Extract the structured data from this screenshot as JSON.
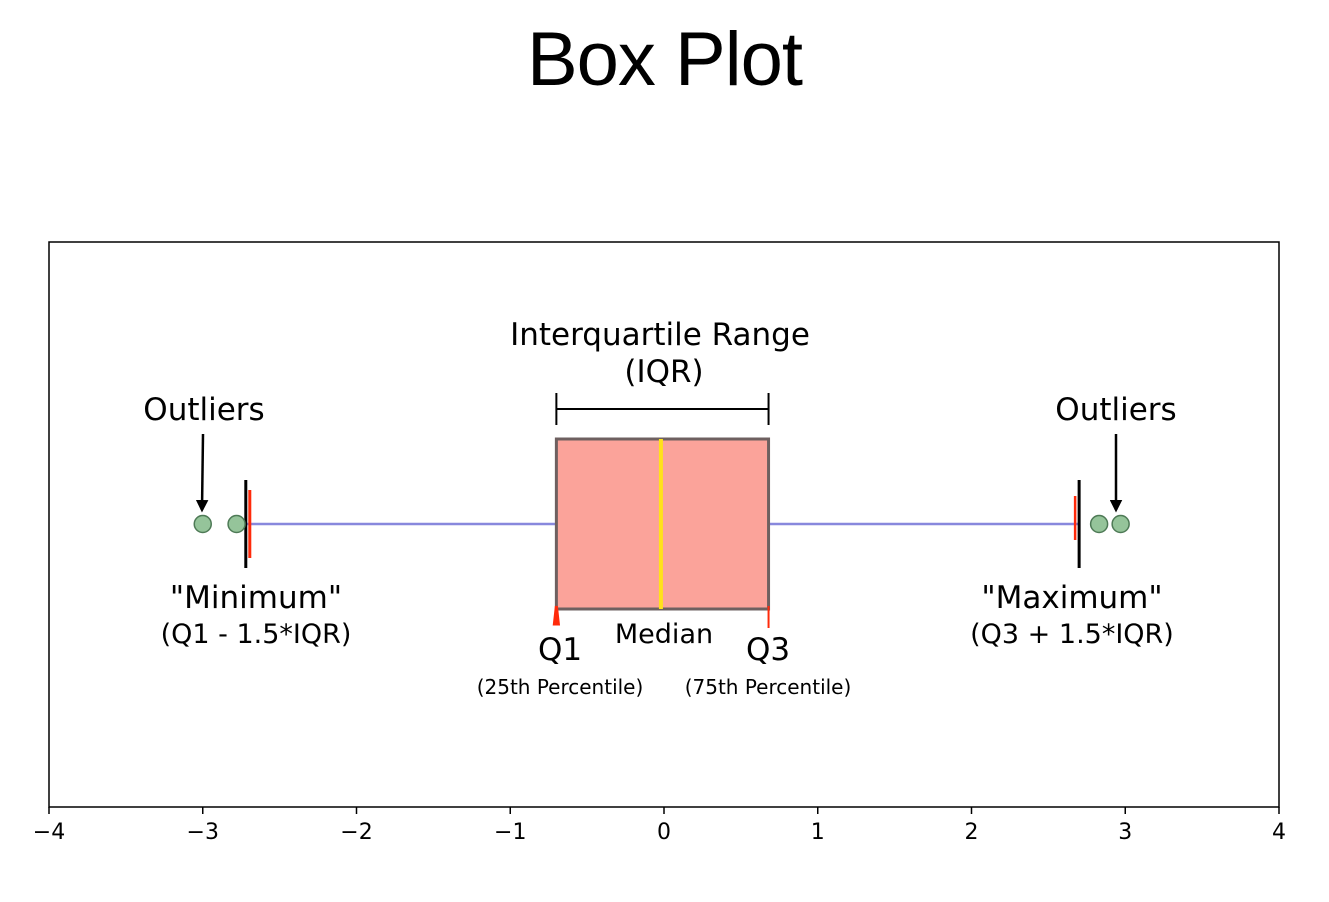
{
  "page_title": "Box Plot",
  "chart_data": {
    "type": "box",
    "xlim": [
      -4,
      4
    ],
    "xticks": [
      -4,
      -3,
      -2,
      -1,
      0,
      1,
      2,
      3,
      4
    ],
    "xtick_labels": [
      "−4",
      "−3",
      "−2",
      "−1",
      "0",
      "1",
      "2",
      "3",
      "4"
    ],
    "grid": false,
    "box": {
      "q1": -0.7,
      "median": -0.02,
      "q3": 0.68,
      "whisker_low": -2.72,
      "whisker_high": 2.7
    },
    "outliers": [
      -3.0,
      -2.78,
      2.83,
      2.97
    ],
    "colors": {
      "box_fill": "#fba39a",
      "box_edge": "#6e6060",
      "median": "#ffe11a",
      "whisker": "#8888dd",
      "cap": "#000000",
      "outlier_fill": "#95c49a",
      "outlier_edge": "#4e7a56",
      "marker": "#ff2a0a"
    },
    "annotations": {
      "iqr_title": "Interquartile Range",
      "iqr_sub": "(IQR)",
      "outliers_left": "Outliers",
      "outliers_right": "Outliers",
      "minimum_title": "\"Minimum\"",
      "minimum_sub": "(Q1 - 1.5*IQR)",
      "maximum_title": "\"Maximum\"",
      "maximum_sub": "(Q3 + 1.5*IQR)",
      "q1": "Q1",
      "q1_sub": "(25th Percentile)",
      "median": "Median",
      "q3": "Q3",
      "q3_sub": "(75th Percentile)"
    }
  }
}
